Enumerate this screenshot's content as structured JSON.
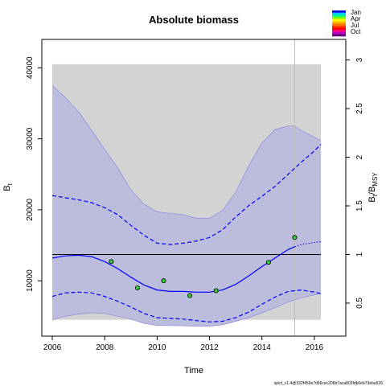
{
  "chart_data": {
    "type": "line",
    "title": "Absolute biomass",
    "xlabel": "Time",
    "ylabel_left": "B",
    "ylabel_left_sub": "t",
    "ylabel_right": "B",
    "ylabel_right_sub": "t",
    "ylabel_right_suffix": "/B",
    "ylabel_right_suffix_sub": "MSY",
    "xlim": [
      2005.6,
      2017.2
    ],
    "ylim": [
      2200,
      44000
    ],
    "right_axis_scale": 13700,
    "x_ticks": [
      2006,
      2008,
      2010,
      2012,
      2014,
      2016
    ],
    "y_ticks": [
      10000,
      20000,
      30000,
      40000
    ],
    "y_ticks_right": [
      0.5,
      1,
      1.5,
      2,
      2.5,
      3
    ],
    "grey_band": {
      "x": [
        2006,
        2016.25
      ],
      "y": [
        4500,
        40500
      ]
    },
    "bmsy_line": 13700,
    "vertical_line_x": 2015.25,
    "estimate": {
      "x": [
        2006,
        2006.5,
        2007,
        2007.5,
        2008,
        2008.5,
        2009,
        2009.5,
        2010,
        2010.5,
        2011,
        2011.5,
        2012,
        2012.5,
        2013,
        2013.5,
        2014,
        2014.5,
        2015,
        2015.25
      ],
      "y": [
        13200,
        13500,
        13600,
        13400,
        12700,
        11700,
        10500,
        9400,
        8700,
        8500,
        8500,
        8400,
        8400,
        8700,
        9500,
        10700,
        12000,
        13200,
        14400,
        14800
      ]
    },
    "prediction": {
      "x": [
        2015.25,
        2015.5,
        2016,
        2016.25
      ],
      "y": [
        14800,
        15100,
        15400,
        15500
      ]
    },
    "ci_upper": {
      "x": [
        2006,
        2006.5,
        2007,
        2007.5,
        2008,
        2008.5,
        2009,
        2009.5,
        2010,
        2010.5,
        2011,
        2011.5,
        2012,
        2012.5,
        2013,
        2013.5,
        2014,
        2014.5,
        2015,
        2015.5,
        2016,
        2016.25
      ],
      "y": [
        22000,
        21700,
        21400,
        21000,
        20300,
        19300,
        17800,
        16400,
        15300,
        15100,
        15300,
        15600,
        16100,
        17200,
        19000,
        20600,
        21900,
        23300,
        25000,
        26700,
        28300,
        29200
      ]
    },
    "ci_lower": {
      "x": [
        2006,
        2006.5,
        2007,
        2007.5,
        2008,
        2008.5,
        2009,
        2009.5,
        2010,
        2010.5,
        2011,
        2011.5,
        2012,
        2012.5,
        2013,
        2013.5,
        2014,
        2014.5,
        2015,
        2015.5,
        2016,
        2016.25
      ],
      "y": [
        7800,
        8300,
        8400,
        8300,
        7800,
        7100,
        6300,
        5400,
        4800,
        4700,
        4600,
        4400,
        4200,
        4300,
        4800,
        5600,
        6700,
        7700,
        8500,
        8700,
        8400,
        8200
      ]
    },
    "band_upper": {
      "x": [
        2006,
        2006.5,
        2007,
        2007.5,
        2008,
        2008.5,
        2009,
        2009.5,
        2010,
        2010.5,
        2011,
        2011.5,
        2012,
        2012.5,
        2013,
        2013.5,
        2014,
        2014.5,
        2015,
        2015.25,
        2015.5,
        2016,
        2016.25
      ],
      "y": [
        37500,
        35800,
        33800,
        31200,
        28500,
        25900,
        22800,
        20800,
        19700,
        19500,
        19300,
        18800,
        18800,
        19900,
        22500,
        26200,
        29400,
        31300,
        31800,
        31800,
        31200,
        30200,
        29800
      ]
    },
    "band_lower": {
      "x": [
        2006,
        2006.5,
        2007,
        2007.5,
        2008,
        2008.5,
        2009,
        2009.5,
        2010,
        2010.5,
        2011,
        2011.5,
        2012,
        2012.5,
        2013,
        2013.5,
        2014,
        2014.5,
        2015,
        2015.5,
        2016,
        2016.25
      ],
      "y": [
        4500,
        5000,
        5300,
        5500,
        5400,
        5000,
        4600,
        4000,
        3700,
        3700,
        3650,
        3600,
        3600,
        3800,
        4300,
        4800,
        5500,
        6200,
        7000,
        7600,
        8000,
        8200
      ]
    },
    "observations": {
      "x": [
        2008.25,
        2009.25,
        2010.25,
        2011.25,
        2012.25,
        2014.25,
        2015.25
      ],
      "y": [
        12700,
        9000,
        10000,
        7900,
        8600,
        12600,
        16100
      ]
    },
    "legend": {
      "labels": [
        "Jan",
        "Apr",
        "Jul",
        "Oct"
      ],
      "colors": [
        "#0000ff",
        "#00c8ff",
        "#00ff80",
        "#80ff00",
        "#ffff00",
        "#ffc000",
        "#ff8000",
        "#ff4000",
        "#ff0000",
        "#ff0080",
        "#c000c0",
        "#600080"
      ]
    },
    "colors": {
      "band_fill": "#bcbcdd",
      "grey_band": "#d3d3d3",
      "line": "#0000ff",
      "point_fill": "#33cc33"
    },
    "footnote": "spict_v1.4@332f459e7d96cec206b7aca803fdb0eb73eba526"
  }
}
